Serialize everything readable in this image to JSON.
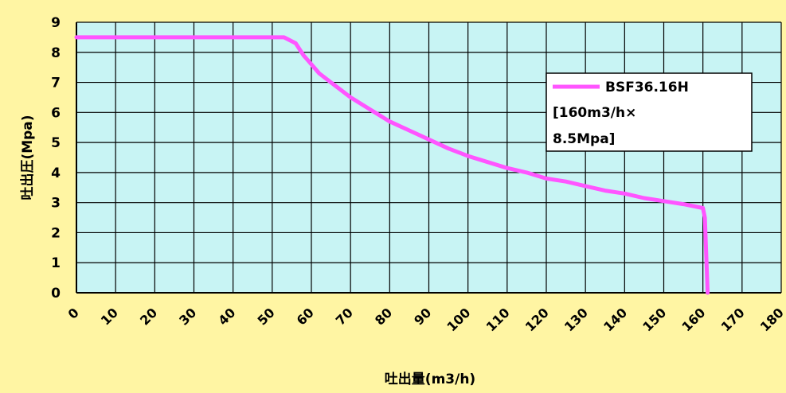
{
  "chart_data": {
    "type": "line",
    "title": "",
    "xlabel": "吐出量(m3/h)",
    "ylabel": "吐出圧(Mpa)",
    "xlim": [
      0,
      180
    ],
    "ylim": [
      0,
      9
    ],
    "x_ticks": [
      "0",
      "10",
      "20",
      "30",
      "40",
      "50",
      "60",
      "70",
      "80",
      "90",
      "100",
      "110",
      "120",
      "130",
      "140",
      "150",
      "160",
      "170",
      "180"
    ],
    "y_ticks": [
      "0",
      "1",
      "2",
      "3",
      "4",
      "5",
      "6",
      "7",
      "8",
      "9"
    ],
    "grid": true,
    "legend_position": "top-right",
    "colors": {
      "background": "#fff5a3",
      "plot_area": "#c8f4f4",
      "grid": "#000000",
      "series": "#ff55ff",
      "legend_bg": "#ffffff"
    },
    "series": [
      {
        "name": "BSF36.16H\n[160m3/h×\n8.5Mpa]",
        "x": [
          0,
          10,
          20,
          30,
          40,
          50,
          53,
          56,
          58,
          60,
          62,
          65,
          70,
          75,
          80,
          85,
          90,
          95,
          100,
          105,
          110,
          115,
          120,
          125,
          130,
          135,
          140,
          145,
          150,
          155,
          160,
          160.5,
          161.2
        ],
        "y": [
          8.5,
          8.5,
          8.5,
          8.5,
          8.5,
          8.5,
          8.5,
          8.3,
          7.9,
          7.6,
          7.3,
          7.0,
          6.5,
          6.1,
          5.7,
          5.4,
          5.1,
          4.8,
          4.55,
          4.35,
          4.15,
          4.0,
          3.8,
          3.7,
          3.55,
          3.4,
          3.3,
          3.15,
          3.05,
          2.95,
          2.82,
          2.5,
          0
        ]
      }
    ]
  }
}
